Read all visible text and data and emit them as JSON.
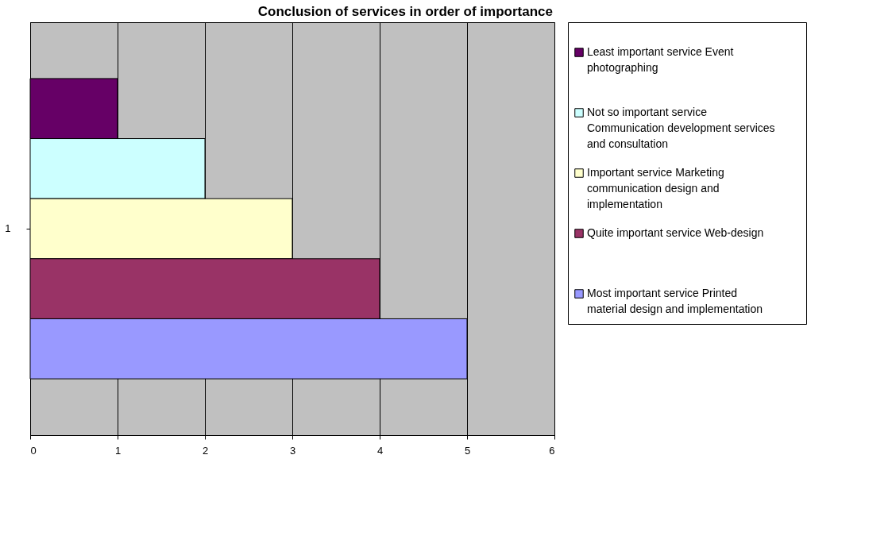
{
  "chart_data": {
    "type": "bar",
    "orientation": "horizontal",
    "title": "Conclusion of services in order of importance",
    "categories": [
      "1"
    ],
    "series": [
      {
        "name": "Least important service Event photographing",
        "color": "#660066",
        "values": [
          1
        ]
      },
      {
        "name": "Not so important service Communication development services and consultation",
        "color": "#ccffff",
        "values": [
          2
        ]
      },
      {
        "name": "Important service Marketing communication design and implementation",
        "color": "#ffffcc",
        "values": [
          3
        ]
      },
      {
        "name": "Quite important service Web-design",
        "color": "#993366",
        "values": [
          4
        ]
      },
      {
        "name": "Most important service Printed material design and implementation",
        "color": "#9999ff",
        "values": [
          5
        ]
      }
    ],
    "xlim": [
      0,
      6
    ],
    "xticks": [
      0,
      1,
      2,
      3,
      4,
      5,
      6
    ],
    "grid": "x",
    "legend": "right"
  }
}
